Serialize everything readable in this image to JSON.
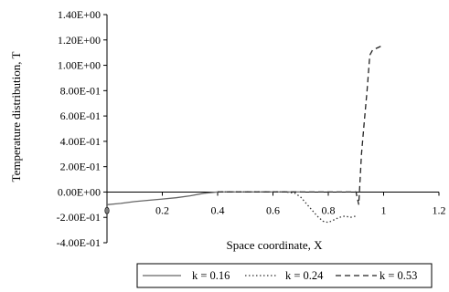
{
  "chart_data": {
    "type": "line",
    "title": "",
    "xlabel": "Space coordinate, X",
    "ylabel": "Temperature distribution, T",
    "xlim": [
      0,
      1.2
    ],
    "ylim": [
      -0.4,
      1.4
    ],
    "x_ticks": [
      0,
      0.2,
      0.4,
      0.6,
      0.8,
      1,
      1.2
    ],
    "x_tick_labels": [
      "0",
      "0.2",
      "0.4",
      "0.6",
      "0.8",
      "1",
      "1.2"
    ],
    "y_ticks": [
      1.4,
      1.2,
      1.0,
      0.8,
      0.6,
      0.4,
      0.2,
      0.0,
      -0.2,
      -0.4
    ],
    "y_tick_labels": [
      "1.40E+00",
      "1.20E+00",
      "1.00E+00",
      "8.00E-01",
      "6.00E-01",
      "4.00E-01",
      "2.00E-01",
      "0.00E+00",
      "-2.00E-01",
      "-4.00E-01"
    ],
    "grid": false,
    "legend_position": "bottom",
    "series": [
      {
        "name": "k = 0.16",
        "style": "solid",
        "color": "#666666",
        "x": [
          0,
          0.05,
          0.1,
          0.15,
          0.2,
          0.25,
          0.3,
          0.35,
          0.4,
          0.45,
          0.5,
          0.55,
          0.6,
          0.65,
          0.7
        ],
        "y": [
          -0.1,
          -0.09,
          -0.075,
          -0.065,
          -0.055,
          -0.045,
          -0.03,
          -0.01,
          0.0,
          0.0,
          0.0,
          0.0,
          0.0,
          0.0,
          0.0
        ]
      },
      {
        "name": "k = 0.24",
        "style": "dotted",
        "color": "#333333",
        "x": [
          0.4,
          0.5,
          0.6,
          0.65,
          0.68,
          0.7,
          0.72,
          0.74,
          0.76,
          0.78,
          0.8,
          0.82,
          0.84,
          0.86,
          0.88,
          0.9
        ],
        "y": [
          0.0,
          0.0,
          0.0,
          0.0,
          -0.01,
          -0.04,
          -0.09,
          -0.14,
          -0.19,
          -0.23,
          -0.24,
          -0.22,
          -0.2,
          -0.19,
          -0.2,
          -0.19
        ]
      },
      {
        "name": "k = 0.53",
        "style": "dashed",
        "color": "#222222",
        "x": [
          0.4,
          0.5,
          0.6,
          0.7,
          0.8,
          0.88,
          0.89,
          0.9,
          0.91,
          0.92,
          0.93,
          0.94,
          0.95,
          0.96,
          0.98,
          1.0
        ],
        "y": [
          0.0,
          0.0,
          0.0,
          0.0,
          0.0,
          0.0,
          0.0,
          0.0,
          -0.1,
          0.3,
          0.55,
          0.8,
          1.08,
          1.12,
          1.14,
          1.16
        ]
      }
    ]
  }
}
